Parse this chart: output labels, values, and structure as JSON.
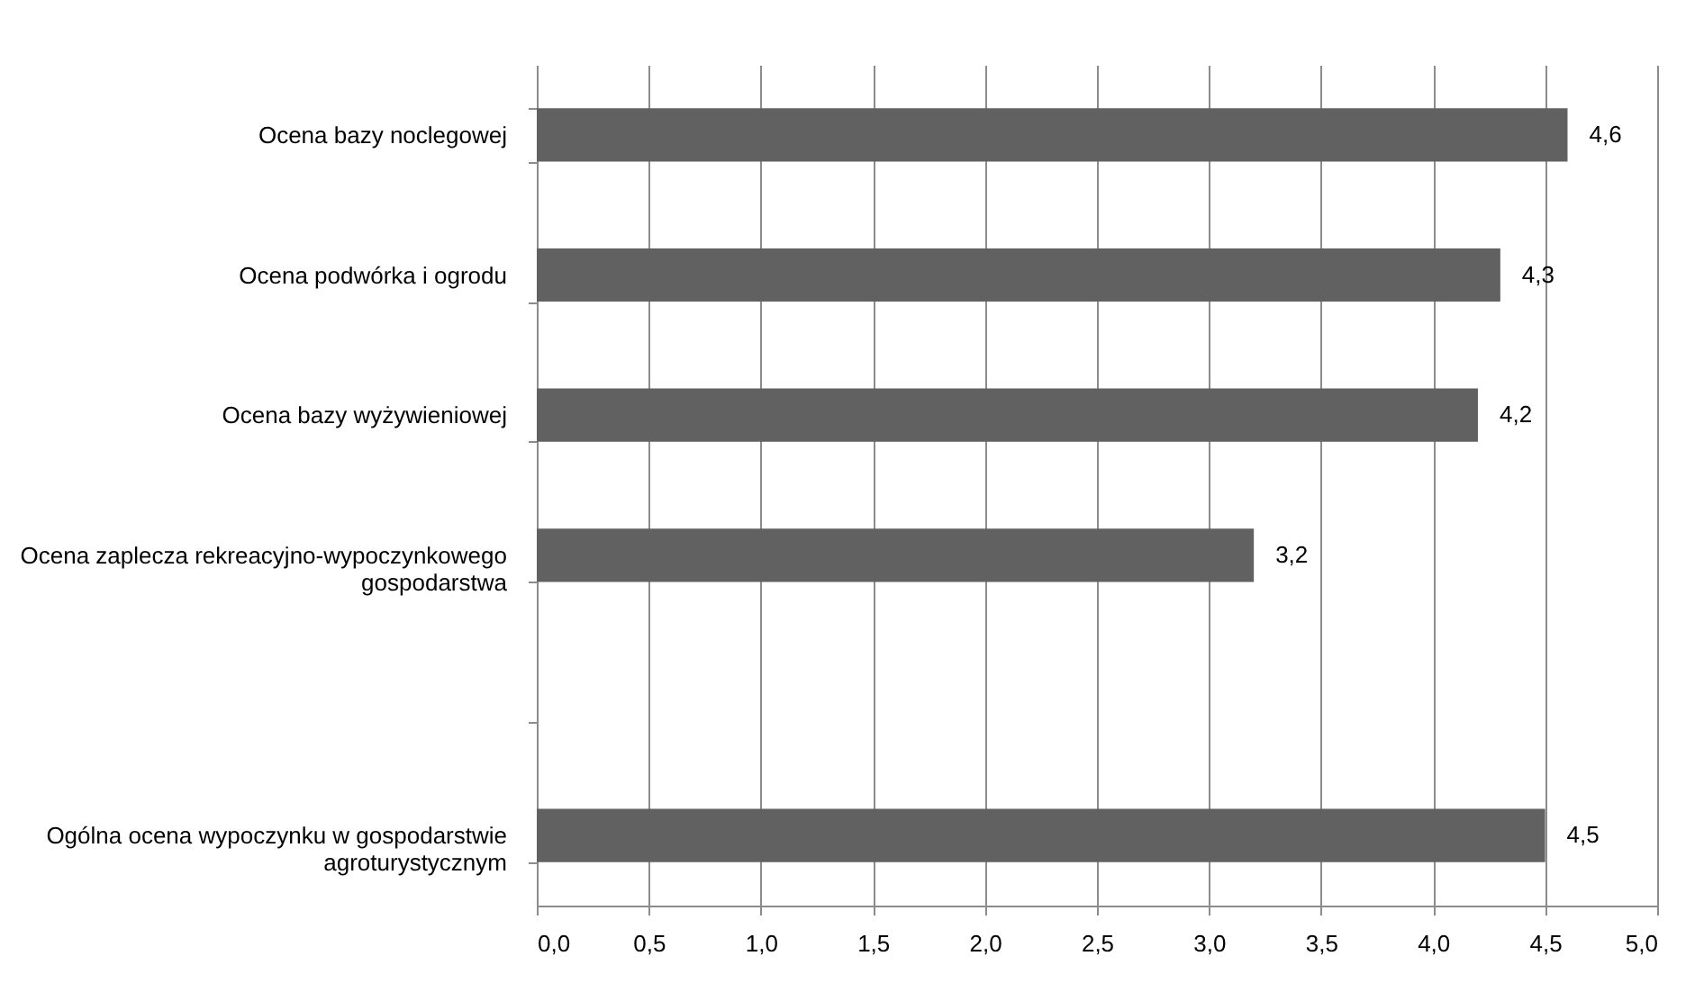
{
  "chart_data": {
    "type": "bar",
    "orientation": "horizontal",
    "categories": [
      "Ocena bazy noclegowej",
      "Ocena podwórka i ogrodu",
      "Ocena bazy wyżywieniowej",
      "Ocena zaplecza rekreacyjno-wypoczynkowego gospodarstwa",
      null,
      "Ogólna ocena wypoczynku w gospodarstwie agroturystycznym"
    ],
    "values": [
      4.6,
      4.3,
      4.2,
      3.2,
      null,
      4.5
    ],
    "value_labels": [
      "4,6",
      "4,3",
      "4,2",
      "3,2",
      null,
      "4,5"
    ],
    "color": "#616161",
    "xlim": [
      0,
      5
    ],
    "xticks": [
      {
        "value": 0,
        "label": "0,0"
      },
      {
        "value": 0.5,
        "label": "0,5"
      },
      {
        "value": 1,
        "label": "1,0"
      },
      {
        "value": 1.5,
        "label": "1,5"
      },
      {
        "value": 2,
        "label": "2,0"
      },
      {
        "value": 2.5,
        "label": "2,5"
      },
      {
        "value": 3,
        "label": "3,0"
      },
      {
        "value": 3.5,
        "label": "3,5"
      },
      {
        "value": 4,
        "label": "4,0"
      },
      {
        "value": 4.5,
        "label": "4,5"
      },
      {
        "value": 5,
        "label": "5,0"
      }
    ],
    "grid": "x"
  }
}
